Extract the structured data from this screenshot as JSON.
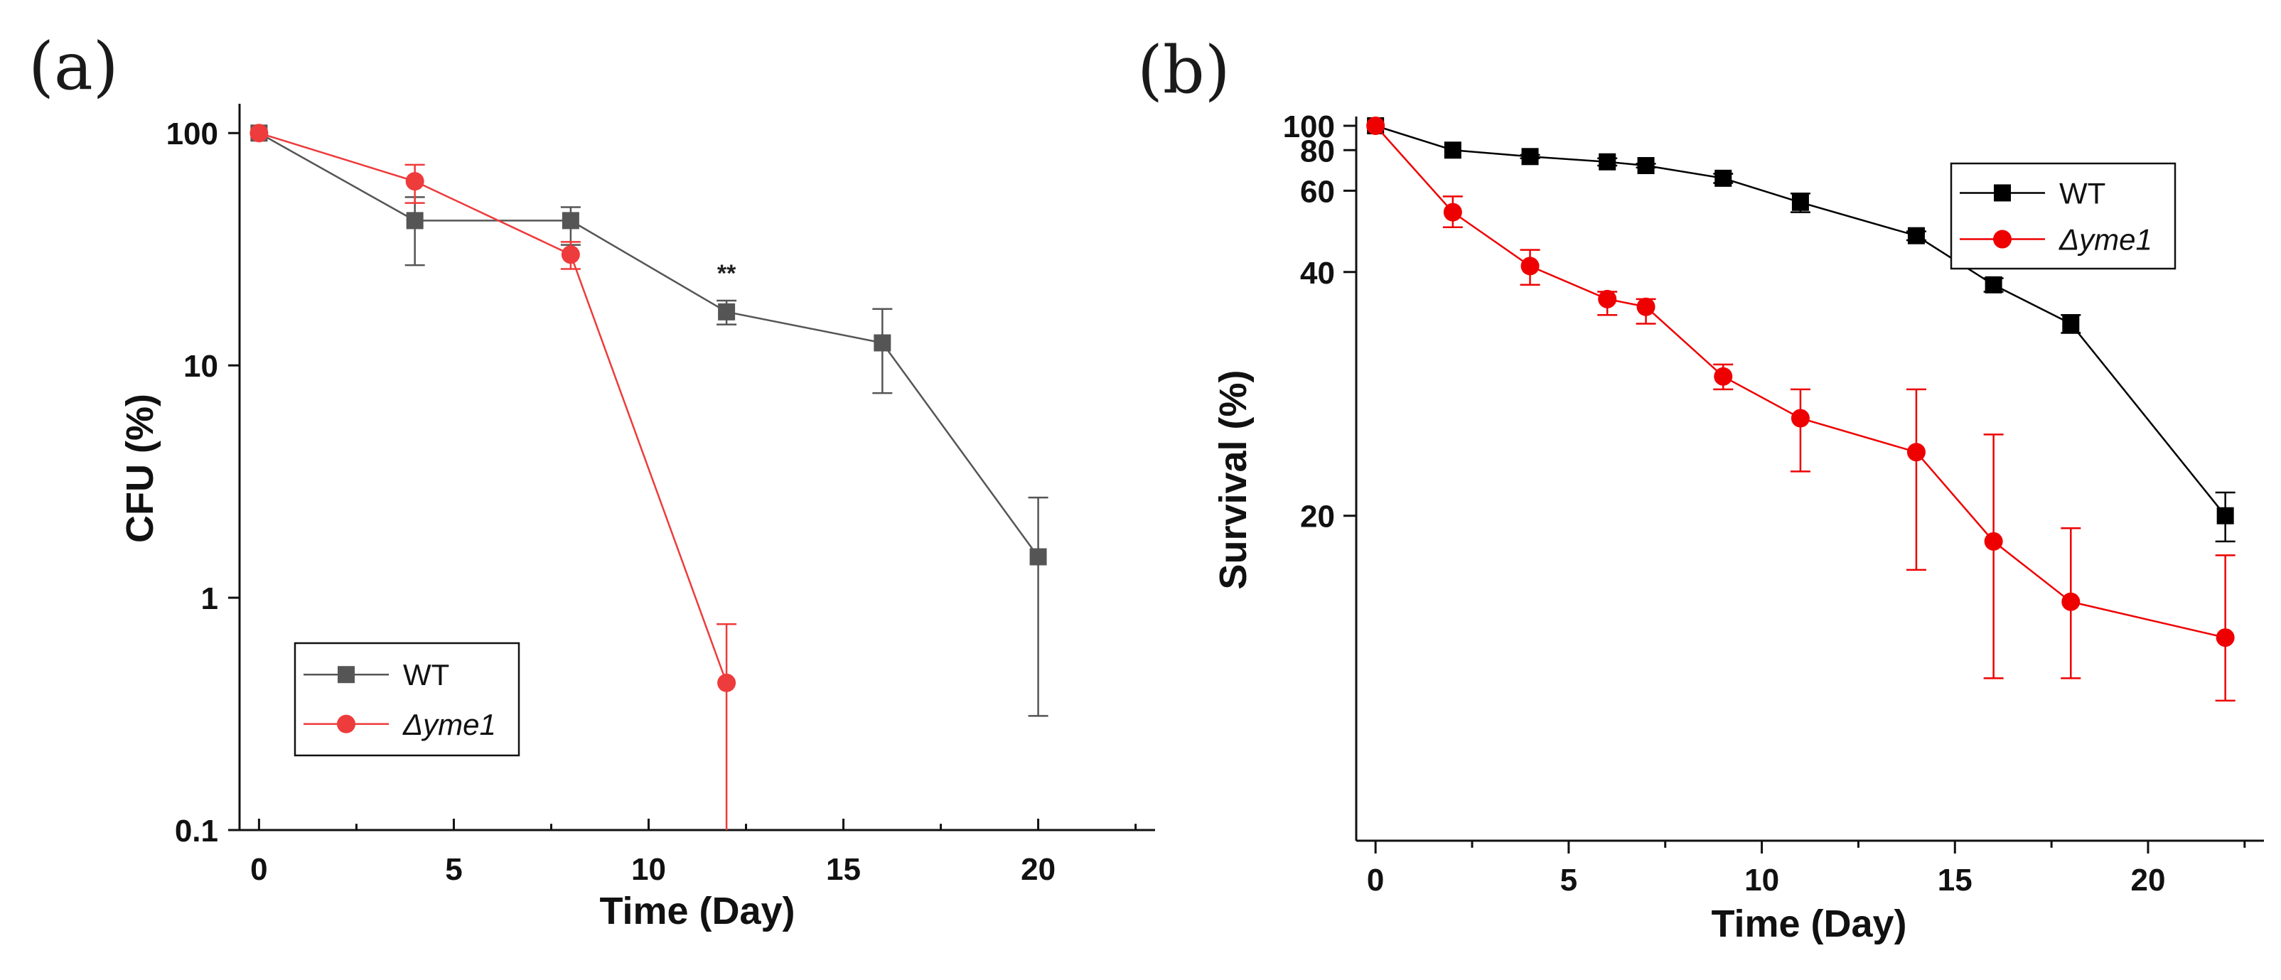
{
  "chart_data": [
    {
      "type": "line",
      "panel_label": "(a)",
      "title": "",
      "xlabel": "Time (Day)",
      "ylabel": "CFU (%)",
      "xlim": [
        -0.5,
        23
      ],
      "ylim": [
        0.1,
        130
      ],
      "yscale": "log",
      "xticks": [
        0,
        5,
        10,
        15,
        20
      ],
      "yticks": [
        0.1,
        1,
        10,
        100
      ],
      "ytick_labels": [
        "0.1",
        "1",
        "10",
        "100"
      ],
      "grid": false,
      "legend_position": "bottom-left",
      "annotations": [
        {
          "text": "**",
          "x": 12,
          "y": 23
        }
      ],
      "series": [
        {
          "name": "WT",
          "color": "#555555",
          "marker": "square",
          "x": [
            0,
            4,
            8,
            12,
            16,
            20
          ],
          "y": [
            100,
            42,
            42,
            17,
            12.5,
            1.5
          ],
          "err_low": [
            100,
            27,
            33,
            15,
            7.6,
            0.31
          ],
          "err_high": [
            100,
            53,
            48,
            19,
            17.5,
            2.7
          ]
        },
        {
          "name": "Δyme1",
          "color": "#ee3b3b",
          "marker": "circle",
          "x": [
            0,
            4,
            8,
            12
          ],
          "y": [
            100,
            62,
            30,
            0.43
          ],
          "err_low": [
            100,
            50,
            26,
            0.1
          ],
          "err_high": [
            100,
            73,
            34,
            0.77
          ]
        }
      ]
    },
    {
      "type": "line",
      "panel_label": "(b)",
      "title": "",
      "xlabel": "Time (Day)",
      "ylabel": "Survival (%)",
      "xlim": [
        -0.5,
        23
      ],
      "ylim": [
        12,
        107
      ],
      "yscale": "reciprocal",
      "xticks": [
        0,
        5,
        10,
        15,
        20
      ],
      "yticks": [
        20,
        40,
        60,
        80,
        100
      ],
      "ytick_labels": [
        "20",
        "40",
        "60",
        "80",
        "100"
      ],
      "grid": false,
      "legend_position": "top-right",
      "series": [
        {
          "name": "WT",
          "color": "#000000",
          "marker": "square",
          "x": [
            0,
            2,
            4,
            6,
            7,
            9,
            11,
            14,
            16,
            18,
            22
          ],
          "y": [
            100,
            80,
            76,
            73,
            71,
            65,
            56,
            47,
            38,
            33,
            20
          ],
          "err_low": [
            100,
            80,
            75,
            71,
            70,
            63,
            53,
            46,
            37,
            32,
            19
          ],
          "err_high": [
            100,
            80,
            77,
            75,
            72,
            67,
            59,
            48,
            39,
            34,
            21
          ]
        },
        {
          "name": "Δyme1",
          "color": "#ee0000",
          "marker": "circle",
          "x": [
            0,
            2,
            4,
            6,
            7,
            9,
            11,
            14,
            16,
            18,
            22
          ],
          "y": [
            100,
            53,
            41,
            36,
            35,
            28,
            25,
            23,
            19,
            17,
            16
          ],
          "err_low": [
            100,
            49,
            38,
            34,
            33,
            27,
            22,
            18,
            15,
            15,
            14.5
          ],
          "err_high": [
            100,
            58,
            44,
            37,
            36,
            29,
            27,
            27,
            24,
            19.5,
            18.5
          ]
        }
      ]
    }
  ]
}
